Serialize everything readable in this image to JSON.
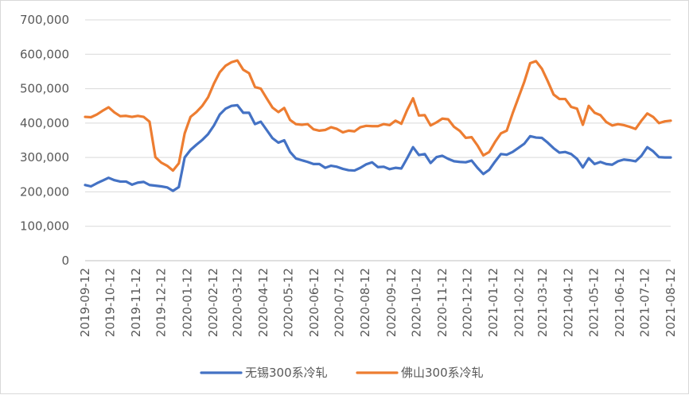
{
  "chart_data": {
    "type": "line",
    "title": "",
    "xlabel": "",
    "ylabel": "",
    "ylim": [
      0,
      700000
    ],
    "yticks": [
      0,
      100000,
      200000,
      300000,
      400000,
      500000,
      600000,
      700000
    ],
    "ytick_labels": [
      "0",
      "100,000",
      "200,000",
      "300,000",
      "400,000",
      "500,000",
      "600,000",
      "700,000"
    ],
    "grid": "horizontal",
    "legend_position": "bottom",
    "xtick_labels": [
      "2019-09-12",
      "2019-10-12",
      "2019-11-12",
      "2019-12-12",
      "2020-01-12",
      "2020-02-12",
      "2020-03-12",
      "2020-04-12",
      "2020-05-12",
      "2020-06-12",
      "2020-07-12",
      "2020-08-12",
      "2020-09-12",
      "2020-10-12",
      "2020-11-12",
      "2020-12-12",
      "2021-01-12",
      "2021-02-12",
      "2021-03-12",
      "2021-04-12",
      "2021-05-12",
      "2021-06-12",
      "2021-07-12",
      "2021-08-12"
    ],
    "x_start": "2019-09-12",
    "x_end": "2021-08-12",
    "series": [
      {
        "name": "无锡300系冷轧",
        "color": "#4472c4",
        "values": [
          220000,
          216000,
          225000,
          233000,
          241000,
          234000,
          230000,
          230000,
          221000,
          227000,
          229000,
          220000,
          218000,
          216000,
          213000,
          203000,
          214000,
          300000,
          322000,
          337000,
          351000,
          368000,
          393000,
          425000,
          442000,
          450000,
          452000,
          430000,
          430000,
          397000,
          404000,
          380000,
          356000,
          343000,
          350000,
          316000,
          297000,
          292000,
          287000,
          281000,
          281000,
          270000,
          276000,
          273000,
          267000,
          263000,
          262000,
          270000,
          280000,
          286000,
          272000,
          273000,
          266000,
          270000,
          268000,
          298000,
          330000,
          307000,
          310000,
          284000,
          301000,
          305000,
          296000,
          289000,
          287000,
          286000,
          291000,
          270000,
          252000,
          264000,
          288000,
          310000,
          308000,
          316000,
          328000,
          340000,
          362000,
          358000,
          357000,
          343000,
          327000,
          314000,
          316000,
          310000,
          296000,
          271000,
          298000,
          281000,
          287000,
          281000,
          279000,
          289000,
          294000,
          292000,
          289000,
          305000,
          330000,
          318000,
          301000,
          300000,
          300000
        ]
      },
      {
        "name": "佛山300系冷轧",
        "color": "#ed7d31",
        "values": [
          418000,
          417000,
          425000,
          436000,
          446000,
          431000,
          420000,
          421000,
          418000,
          421000,
          418000,
          404000,
          301000,
          285000,
          276000,
          262000,
          283000,
          370000,
          418000,
          432000,
          450000,
          475000,
          515000,
          548000,
          567000,
          577000,
          582000,
          555000,
          545000,
          505000,
          500000,
          472000,
          445000,
          432000,
          444000,
          409000,
          397000,
          395000,
          397000,
          382000,
          378000,
          380000,
          388000,
          383000,
          373000,
          378000,
          376000,
          388000,
          392000,
          391000,
          391000,
          397000,
          394000,
          407000,
          398000,
          438000,
          472000,
          422000,
          423000,
          393000,
          402000,
          413000,
          411000,
          389000,
          377000,
          357000,
          359000,
          335000,
          306000,
          316000,
          345000,
          370000,
          378000,
          428000,
          474000,
          520000,
          574000,
          580000,
          558000,
          522000,
          483000,
          470000,
          470000,
          447000,
          442000,
          395000,
          450000,
          430000,
          423000,
          403000,
          393000,
          397000,
          394000,
          389000,
          383000,
          407000,
          428000,
          418000,
          400000,
          405000,
          407000
        ]
      }
    ]
  }
}
